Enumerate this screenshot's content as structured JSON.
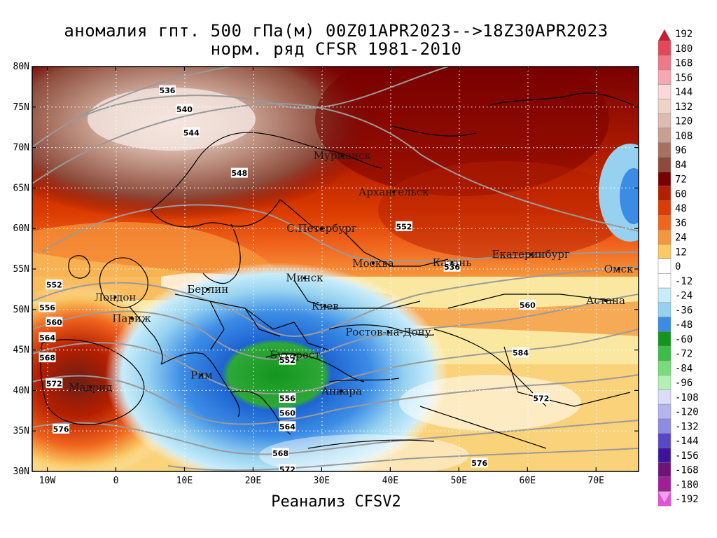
{
  "title": {
    "line1": "аномалия гпт. 500 гПа(м) 00Z01APR2023-->18Z30APR2023",
    "line2": "норм. ряд CFSR 1981-2010"
  },
  "footer": "Реанализ CFSV2",
  "axes": {
    "lat_ticks": [
      "80N",
      "75N",
      "70N",
      "65N",
      "60N",
      "55N",
      "50N",
      "45N",
      "40N",
      "35N",
      "30N"
    ],
    "lon_ticks": [
      "10W",
      "0",
      "10E",
      "20E",
      "30E",
      "40E",
      "50E",
      "60E",
      "70E"
    ]
  },
  "cities": [
    {
      "name": "Мурманск",
      "lon": 33,
      "lat": 69
    },
    {
      "name": "Архангельск",
      "lon": 40.5,
      "lat": 64.5
    },
    {
      "name": "С.Петербург",
      "lon": 30,
      "lat": 60
    },
    {
      "name": "Москва",
      "lon": 37.5,
      "lat": 55.7
    },
    {
      "name": "Казань",
      "lon": 49,
      "lat": 55.8
    },
    {
      "name": "Екатеринбург",
      "lon": 60.5,
      "lat": 56.8
    },
    {
      "name": "Минск",
      "lon": 27.5,
      "lat": 53.9
    },
    {
      "name": "Омск",
      "lon": 73.3,
      "lat": 55
    },
    {
      "name": "Лондон",
      "lon": -0.1,
      "lat": 51.5
    },
    {
      "name": "Берлин",
      "lon": 13.4,
      "lat": 52.5
    },
    {
      "name": "Киев",
      "lon": 30.5,
      "lat": 50.4
    },
    {
      "name": "Астана",
      "lon": 71.4,
      "lat": 51.1
    },
    {
      "name": "Париж",
      "lon": 2.3,
      "lat": 48.9
    },
    {
      "name": "Ростов-на-Дону",
      "lon": 39.7,
      "lat": 47.2
    },
    {
      "name": "Бухарест",
      "lon": 26.1,
      "lat": 44.4
    },
    {
      "name": "Рим",
      "lon": 12.5,
      "lat": 41.9
    },
    {
      "name": "Мадрид",
      "lon": -3.7,
      "lat": 40.4
    },
    {
      "name": "Анкара",
      "lon": 32.9,
      "lat": 39.9
    }
  ],
  "contour_labels": [
    {
      "value": "536",
      "lon": 7.5,
      "lat": 77
    },
    {
      "value": "540",
      "lon": 10,
      "lat": 74.7
    },
    {
      "value": "544",
      "lon": 11,
      "lat": 71.8
    },
    {
      "value": "548",
      "lon": 18,
      "lat": 66.8
    },
    {
      "value": "552",
      "lon": 42,
      "lat": 60.2
    },
    {
      "value": "536",
      "lon": 49,
      "lat": 55.2
    },
    {
      "value": "560",
      "lon": 60,
      "lat": 50.5
    },
    {
      "value": "584",
      "lon": 59,
      "lat": 44.6
    },
    {
      "value": "552",
      "lon": 25,
      "lat": 43.7
    },
    {
      "value": "556",
      "lon": 25,
      "lat": 39
    },
    {
      "value": "560",
      "lon": 25,
      "lat": 37.2
    },
    {
      "value": "564",
      "lon": 25,
      "lat": 35.5
    },
    {
      "value": "568",
      "lon": 24,
      "lat": 32.2
    },
    {
      "value": "572",
      "lon": 25,
      "lat": 30.2
    },
    {
      "value": "576",
      "lon": 53,
      "lat": 31
    },
    {
      "value": "572",
      "lon": 62,
      "lat": 39
    },
    {
      "value": "552",
      "lon": -9,
      "lat": 53
    },
    {
      "value": "556",
      "lon": -10,
      "lat": 50.2
    },
    {
      "value": "560",
      "lon": -9,
      "lat": 48.4
    },
    {
      "value": "564",
      "lon": -10,
      "lat": 46.5
    },
    {
      "value": "568",
      "lon": -10,
      "lat": 44
    },
    {
      "value": "572",
      "lon": -9,
      "lat": 40.8
    },
    {
      "value": "576",
      "lon": -8,
      "lat": 35.2
    }
  ],
  "legend": {
    "labels": [
      "192",
      "180",
      "168",
      "156",
      "144",
      "132",
      "120",
      "108",
      "96",
      "84",
      "72",
      "60",
      "48",
      "36",
      "24",
      "12",
      "0",
      "-12",
      "-24",
      "-36",
      "-48",
      "-60",
      "-72",
      "-84",
      "-96",
      "-108",
      "-120",
      "-132",
      "-144",
      "-156",
      "-168",
      "-180",
      "-192"
    ],
    "colors": [
      "#c81e32",
      "#e6465a",
      "#f07888",
      "#f5a8b2",
      "#fbd8dc",
      "#eed4c8",
      "#dcbcae",
      "#c8a090",
      "#a87060",
      "#8c4a3a",
      "#780000",
      "#b41e00",
      "#dc3c00",
      "#f0641e",
      "#f5963c",
      "#fac864",
      "#ffffff",
      "#ffffff",
      "#c8ecfa",
      "#96d2f0",
      "#3c8ce6",
      "#14961e",
      "#3cbe46",
      "#78dc78",
      "#b4f0b4",
      "#dcdcfa",
      "#b4b4f0",
      "#8c8ce6",
      "#5a46c8",
      "#3c14a0",
      "#6e1478",
      "#a01e96",
      "#e650dc",
      "#f59ef0"
    ]
  }
}
